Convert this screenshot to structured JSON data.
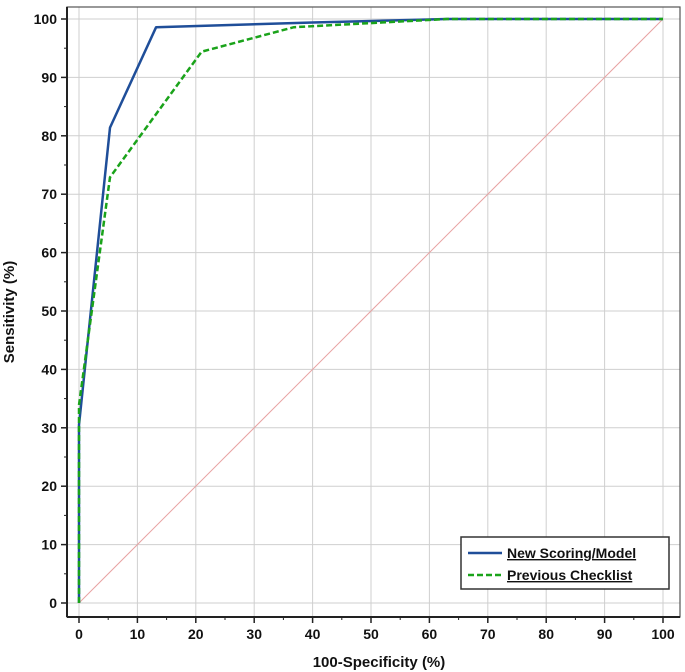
{
  "chart_data": {
    "type": "line",
    "title": "",
    "xlabel": "100-Specificity (%)",
    "ylabel": "Sensitivity (%)",
    "xlim": [
      0,
      100
    ],
    "ylim": [
      0,
      100
    ],
    "x_ticks": [
      "0",
      "10",
      "20",
      "30",
      "40",
      "50",
      "60",
      "70",
      "80",
      "90",
      "100"
    ],
    "y_ticks": [
      "0",
      "10",
      "20",
      "30",
      "40",
      "50",
      "60",
      "70",
      "80",
      "90",
      "100"
    ],
    "grid": true,
    "legend_position": "bottom-right",
    "series": [
      {
        "name": "New Scoring/Model",
        "color": "#1f4e99",
        "style": "solid",
        "x": [
          0,
          0,
          5.3,
          13.2,
          40,
          63,
          100
        ],
        "y": [
          0,
          30.5,
          81.4,
          98.6,
          99.4,
          100,
          100
        ]
      },
      {
        "name": "Previous Checklist",
        "color": "#1aa31a",
        "style": "dashed",
        "x": [
          0,
          0,
          5.3,
          21,
          36.8,
          63,
          100
        ],
        "y": [
          0,
          33.9,
          72.9,
          94.4,
          98.6,
          100,
          100
        ]
      },
      {
        "name": "",
        "color": "#e8a3a3",
        "style": "reference",
        "x": [
          0,
          100
        ],
        "y": [
          0,
          100
        ]
      }
    ]
  }
}
